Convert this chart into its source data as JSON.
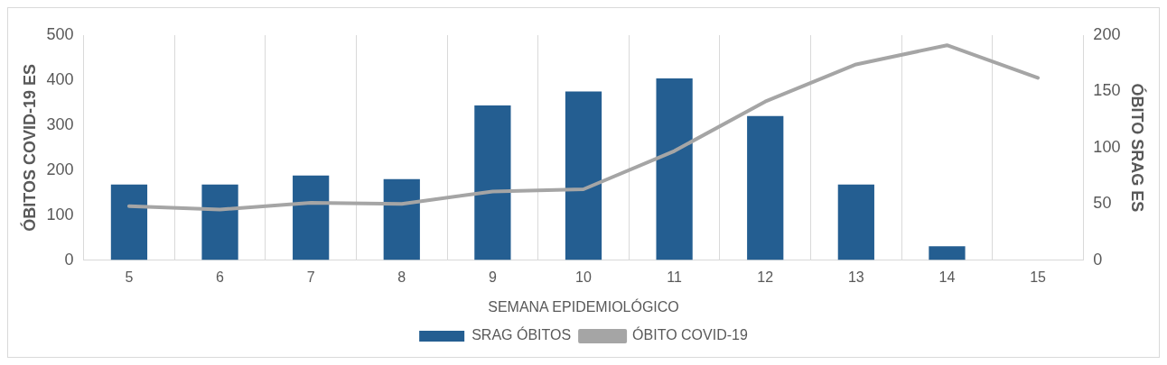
{
  "chart_data": {
    "type": "bar",
    "categories": [
      "5",
      "6",
      "7",
      "8",
      "9",
      "10",
      "11",
      "12",
      "13",
      "14",
      "15"
    ],
    "xlabel": "SEMANA EPIDEMIOLÓGICO",
    "ylabel": "ÓBITOS COVID-19 ES",
    "y2label": "ÓBITO SRAG ES",
    "series": [
      {
        "name": "SRAG ÓBITOS",
        "color": "#245e91",
        "values": [
          168,
          168,
          188,
          180,
          344,
          375,
          404,
          320,
          168,
          31,
          null
        ]
      },
      {
        "name": "ÓBITO COVID-19",
        "type": "line",
        "axis": "y2",
        "color": "#a5a5a5",
        "values": [
          48,
          45,
          51,
          50,
          61,
          63,
          97,
          141,
          174,
          191,
          162
        ]
      }
    ],
    "ylim": [
      0,
      500
    ],
    "yticks": [
      0,
      100,
      200,
      300,
      400,
      500
    ],
    "y2lim": [
      0,
      200
    ],
    "y2ticks": [
      0,
      50,
      100,
      150,
      200
    ],
    "grid": "x",
    "legend": "bottom",
    "marker": "none"
  }
}
